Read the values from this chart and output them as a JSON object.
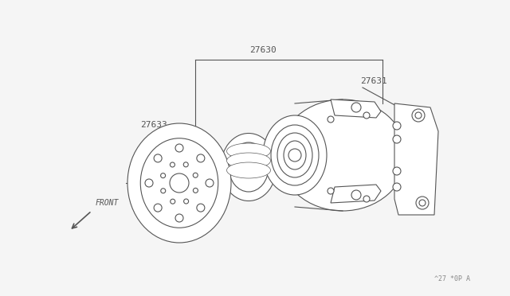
{
  "background_color": "#f5f5f5",
  "line_color": "#555555",
  "label_27630": "27630",
  "label_27631": "27631",
  "label_27633": "27633",
  "label_front": "FRONT",
  "watermark": "^27 *0P A",
  "title_fontsize": 8,
  "label_fontsize": 8,
  "watermark_fontsize": 6
}
